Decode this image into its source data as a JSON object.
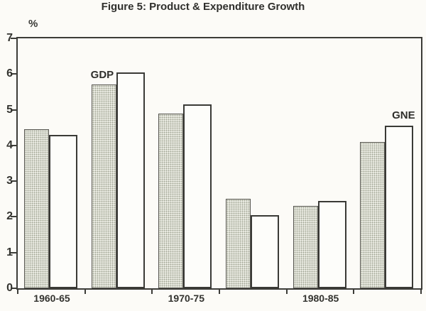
{
  "chart_data": {
    "type": "bar",
    "title": "Figure 5: Product & Expenditure Growth",
    "ylabel": "%",
    "xlabel": "",
    "ylim": [
      0,
      7
    ],
    "yticks": [
      0,
      1,
      2,
      3,
      4,
      5,
      6,
      7
    ],
    "grid": false,
    "legend_position": "none",
    "x_tick_labels": [
      "1960-65",
      "",
      "1970-75",
      "",
      "1980-85",
      ""
    ],
    "series": [
      {
        "name": "GDP",
        "style": "stippled",
        "values": [
          4.45,
          5.7,
          4.9,
          2.5,
          2.3,
          4.1
        ]
      },
      {
        "name": "GNE",
        "style": "white-outlined",
        "values": [
          4.3,
          6.05,
          5.15,
          2.05,
          2.45,
          4.55
        ]
      }
    ],
    "annotations": [
      {
        "text": "GDP",
        "series_index": 0,
        "group_index": 1
      },
      {
        "text": "GNE",
        "series_index": 1,
        "group_index": 5
      }
    ],
    "colors": {
      "background": "#fcfbf7",
      "axis": "#3c3c38",
      "text": "#2f2f2c",
      "stipple_dot": "#9fa492",
      "stipple_fill": "#f5f5ee",
      "white_bar_fill": "#fdfdfa"
    }
  }
}
